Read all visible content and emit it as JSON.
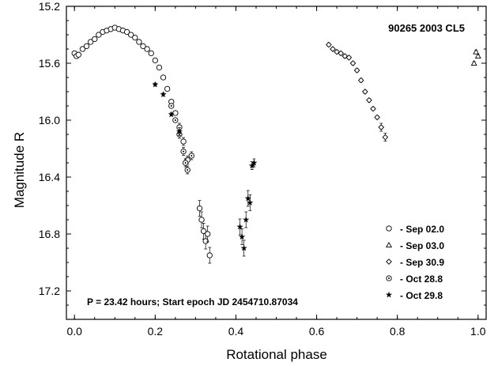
{
  "chart_data": {
    "type": "scatter",
    "title": "90265  2003 CL5",
    "xlabel": "Rotational phase",
    "ylabel": "Magnitude R",
    "xlim": [
      -0.02,
      1.02
    ],
    "ylim": [
      15.2,
      17.4
    ],
    "y_inverted": true,
    "x_ticks": [
      "0.0",
      "0.2",
      "0.4",
      "0.6",
      "0.8",
      "1.0"
    ],
    "y_ticks": [
      "15.2",
      "15.6",
      "16.0",
      "16.4",
      "16.8",
      "17.2"
    ],
    "annotation": "P = 23.42 hours; Start epoch JD 2454710.87034",
    "legend_position": "bottom-right",
    "series": [
      {
        "name": "- Sep 02.0",
        "marker": "circle",
        "points": [
          [
            0.0,
            15.53
          ],
          [
            0.005,
            15.55
          ],
          [
            0.01,
            15.54
          ],
          [
            0.02,
            15.5
          ],
          [
            0.03,
            15.48
          ],
          [
            0.04,
            15.45
          ],
          [
            0.05,
            15.43
          ],
          [
            0.06,
            15.4
          ],
          [
            0.07,
            15.38
          ],
          [
            0.08,
            15.37
          ],
          [
            0.09,
            15.36
          ],
          [
            0.1,
            15.35
          ],
          [
            0.11,
            15.36
          ],
          [
            0.12,
            15.37
          ],
          [
            0.13,
            15.38
          ],
          [
            0.14,
            15.4
          ],
          [
            0.15,
            15.42
          ],
          [
            0.16,
            15.45
          ],
          [
            0.17,
            15.48
          ],
          [
            0.18,
            15.5
          ],
          [
            0.19,
            15.53
          ],
          [
            0.2,
            15.58
          ],
          [
            0.21,
            15.63
          ],
          [
            0.22,
            15.7
          ],
          [
            0.23,
            15.78
          ],
          [
            0.24,
            15.87
          ],
          [
            0.25,
            15.95
          ],
          [
            0.26,
            16.05
          ],
          [
            0.27,
            16.15
          ],
          [
            0.28,
            16.28
          ],
          [
            0.31,
            16.62
          ],
          [
            0.315,
            16.7
          ],
          [
            0.32,
            16.78
          ],
          [
            0.325,
            16.85
          ],
          [
            0.33,
            16.8
          ],
          [
            0.335,
            16.95
          ]
        ]
      },
      {
        "name": "- Sep 03.0",
        "marker": "triangle",
        "points": [
          [
            0.995,
            15.52
          ],
          [
            1.0,
            15.55
          ],
          [
            0.99,
            15.6
          ]
        ]
      },
      {
        "name": "- Sep 30.9",
        "marker": "diamond",
        "points": [
          [
            0.63,
            15.47
          ],
          [
            0.64,
            15.5
          ],
          [
            0.65,
            15.52
          ],
          [
            0.66,
            15.53
          ],
          [
            0.67,
            15.55
          ],
          [
            0.68,
            15.56
          ],
          [
            0.69,
            15.6
          ],
          [
            0.7,
            15.65
          ],
          [
            0.71,
            15.72
          ],
          [
            0.72,
            15.8
          ],
          [
            0.73,
            15.86
          ],
          [
            0.74,
            15.92
          ],
          [
            0.75,
            15.98
          ],
          [
            0.76,
            16.05
          ],
          [
            0.77,
            16.12
          ]
        ]
      },
      {
        "name": "- Oct 28.8",
        "marker": "circle-dot",
        "points": [
          [
            0.24,
            15.9
          ],
          [
            0.25,
            16.0
          ],
          [
            0.26,
            16.1
          ],
          [
            0.27,
            16.22
          ],
          [
            0.275,
            16.3
          ],
          [
            0.28,
            16.35
          ],
          [
            0.29,
            16.25
          ]
        ]
      },
      {
        "name": "- Oct 29.8",
        "marker": "star",
        "points": [
          [
            0.2,
            15.75
          ],
          [
            0.22,
            15.82
          ],
          [
            0.24,
            15.96
          ],
          [
            0.26,
            16.08
          ],
          [
            0.41,
            16.75
          ],
          [
            0.415,
            16.82
          ],
          [
            0.42,
            16.9
          ],
          [
            0.425,
            16.7
          ],
          [
            0.43,
            16.55
          ],
          [
            0.435,
            16.58
          ],
          [
            0.44,
            16.32
          ],
          [
            0.445,
            16.3
          ]
        ]
      }
    ]
  }
}
